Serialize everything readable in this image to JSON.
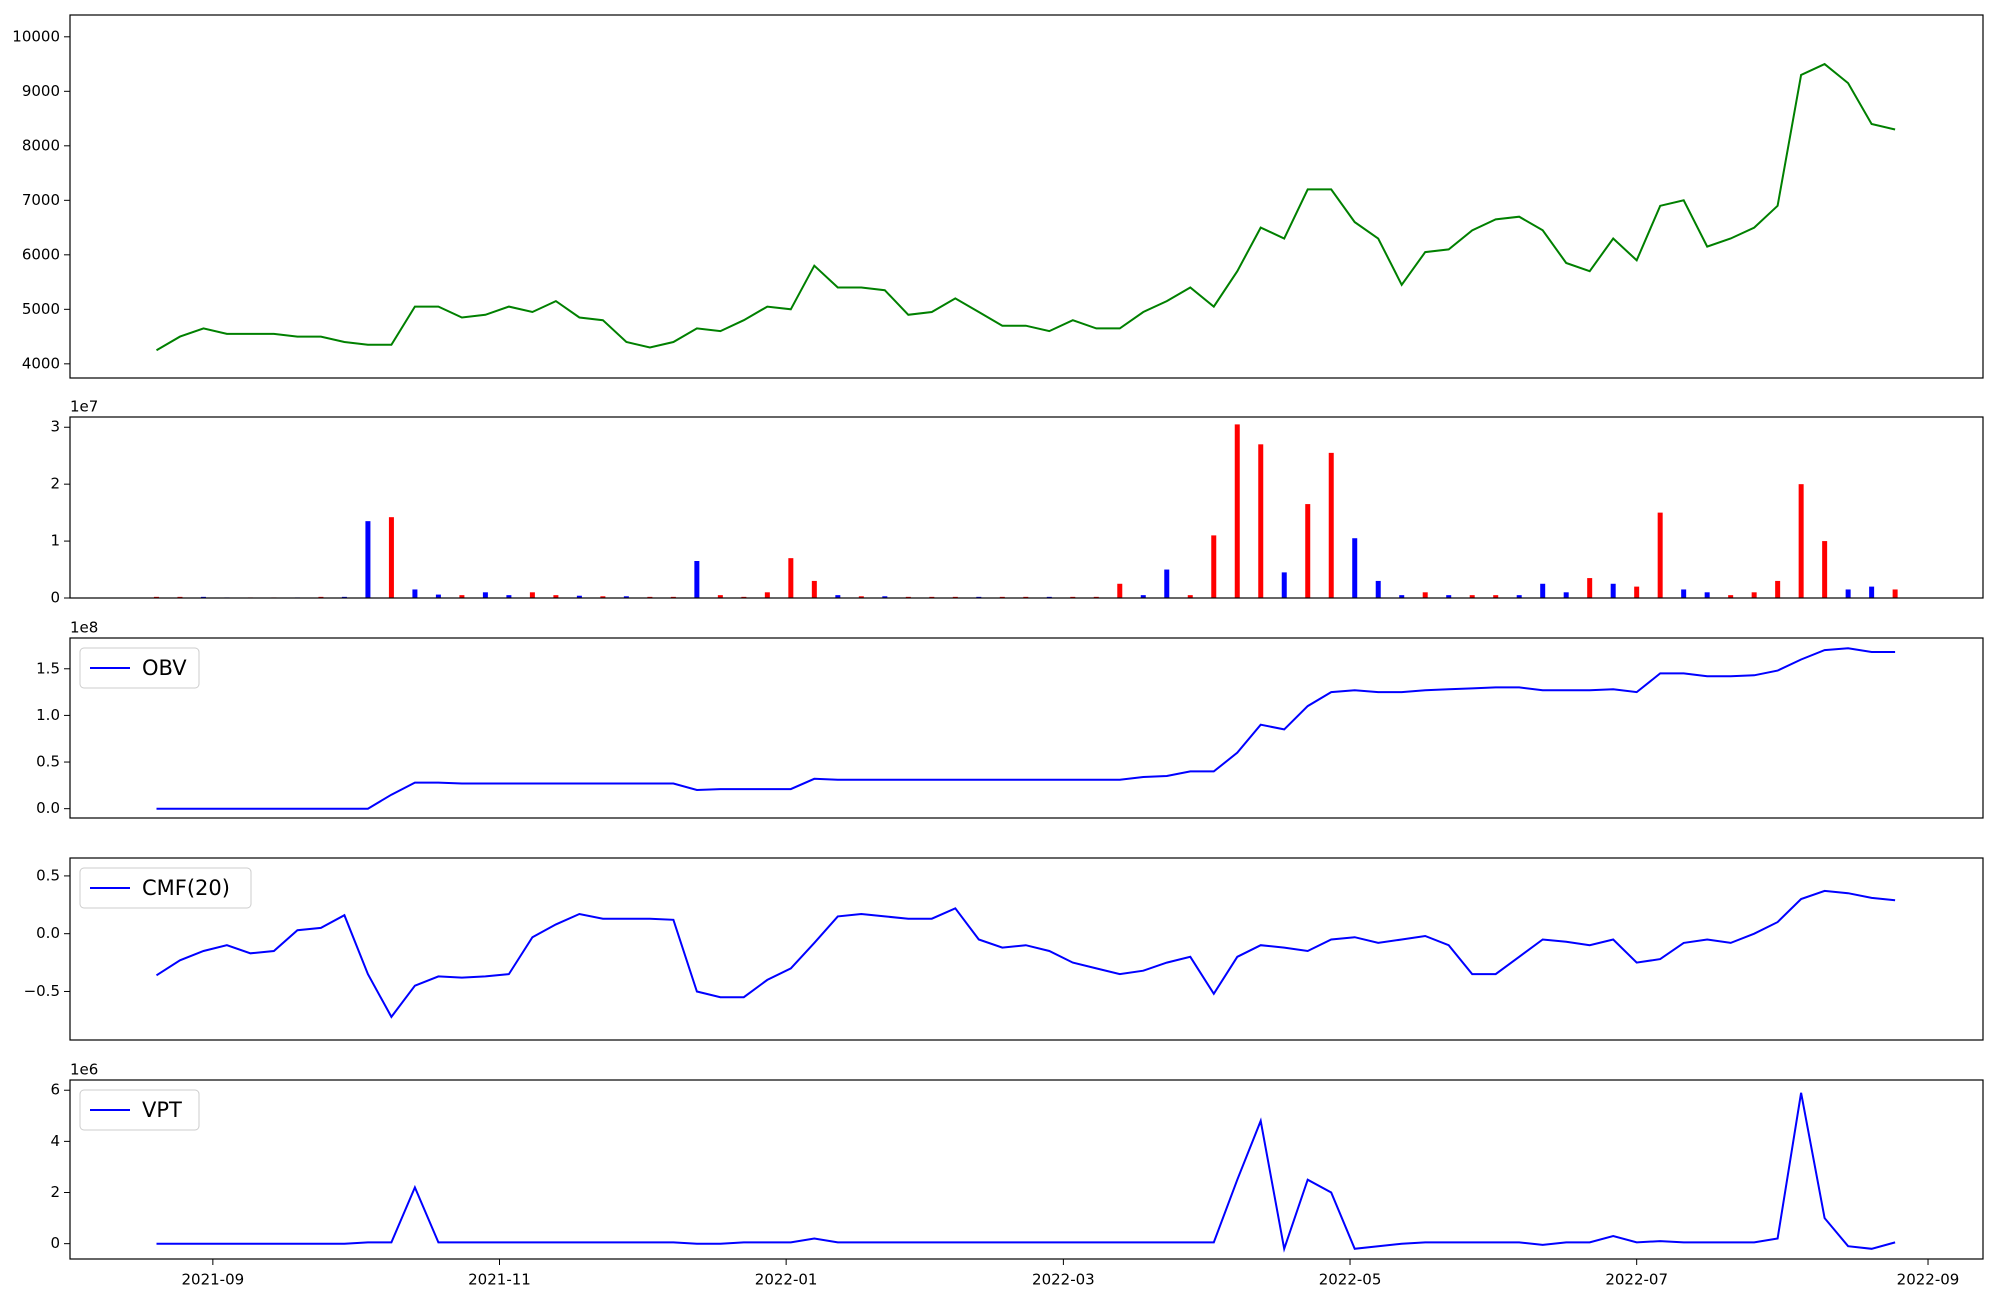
{
  "chart_data": [
    {
      "type": "line",
      "color": "green",
      "values": [
        4250,
        4500,
        4650,
        4550,
        4550,
        4550,
        4500,
        4500,
        4400,
        4350,
        4350,
        5050,
        5050,
        4850,
        4900,
        5050,
        4950,
        5150,
        4850,
        4800,
        4400,
        4300,
        4400,
        4650,
        4600,
        4800,
        5050,
        5000,
        5800,
        5400,
        5400,
        5350,
        4900,
        4950,
        5200,
        4950,
        4700,
        4700,
        4600,
        4800,
        4650,
        4650,
        4950,
        5150,
        5400,
        5050,
        5700,
        6500,
        6300,
        7200,
        7200,
        6600,
        6300,
        5450,
        6050,
        6100,
        6450,
        6650,
        6700,
        6450,
        5850,
        5700,
        6300,
        5900,
        6900,
        7000,
        6150,
        6300,
        6500,
        6900,
        9300,
        9500,
        9150,
        8400,
        8300
      ],
      "ylim": [
        3740,
        10400
      ],
      "yticks": [
        4000,
        5000,
        6000,
        7000,
        8000,
        9000,
        10000
      ]
    },
    {
      "type": "bar",
      "offset_text": "1e7",
      "values": [
        200000,
        200000,
        200000,
        100000,
        100000,
        100000,
        100000,
        200000,
        200000,
        13500000,
        14200000,
        1500000,
        600000,
        500000,
        1000000,
        500000,
        1000000,
        500000,
        400000,
        300000,
        300000,
        200000,
        200000,
        6500000,
        500000,
        200000,
        1000000,
        7000000,
        3000000,
        500000,
        300000,
        300000,
        200000,
        200000,
        200000,
        200000,
        200000,
        200000,
        200000,
        200000,
        200000,
        2500000,
        500000,
        5000000,
        500000,
        11000000,
        30500000,
        27000000,
        4500000,
        16500000,
        25500000,
        10500000,
        3000000,
        500000,
        1000000,
        500000,
        500000,
        500000,
        500000,
        2500000,
        1000000,
        3500000,
        2500000,
        2000000,
        15000000,
        1500000,
        1000000,
        500000,
        1000000,
        3000000,
        20000000,
        10000000,
        1500000,
        2000000,
        1500000
      ],
      "colors": [
        "red",
        "red",
        "blue",
        "blue",
        "red",
        "red",
        "blue",
        "red",
        "blue",
        "blue",
        "red",
        "blue",
        "blue",
        "red",
        "blue",
        "blue",
        "red",
        "red",
        "blue",
        "red",
        "blue",
        "red",
        "red",
        "blue",
        "red",
        "red",
        "red",
        "red",
        "red",
        "blue",
        "red",
        "blue",
        "red",
        "red",
        "red",
        "blue",
        "red",
        "red",
        "blue",
        "red",
        "red",
        "red",
        "blue",
        "blue",
        "red",
        "red",
        "red",
        "red",
        "blue",
        "red",
        "red",
        "blue",
        "blue",
        "blue",
        "red",
        "blue",
        "red",
        "red",
        "blue",
        "blue",
        "blue",
        "red",
        "blue",
        "red",
        "red",
        "blue",
        "blue",
        "red",
        "red",
        "red",
        "red",
        "red",
        "blue",
        "blue",
        "red"
      ],
      "ylim": [
        0,
        31800000
      ],
      "yticks": [
        0,
        {
          "value": 10000000,
          "label": "1"
        },
        {
          "value": 20000000,
          "label": "2"
        },
        {
          "value": 30000000,
          "label": "3"
        }
      ]
    },
    {
      "type": "line",
      "offset_text": "1e8",
      "legend": "upper left",
      "series": [
        {
          "name": "OBV",
          "color": "blue",
          "values": [
            0,
            0,
            0,
            0,
            0,
            0,
            0,
            0,
            0,
            0,
            15000000,
            28000000,
            28000000,
            27000000,
            27000000,
            27000000,
            27000000,
            27000000,
            27000000,
            27000000,
            27000000,
            27000000,
            27000000,
            20000000,
            21000000,
            21000000,
            21000000,
            21000000,
            32000000,
            31000000,
            31000000,
            31000000,
            31000000,
            31000000,
            31000000,
            31000000,
            31000000,
            31000000,
            31000000,
            31000000,
            31000000,
            31000000,
            34000000,
            35000000,
            40000000,
            40000000,
            60000000,
            90000000,
            85000000,
            110000000,
            125000000,
            127000000,
            125000000,
            125000000,
            127000000,
            128000000,
            129000000,
            130000000,
            130000000,
            127000000,
            127000000,
            127000000,
            128000000,
            125000000,
            145000000,
            145000000,
            142000000,
            142000000,
            143000000,
            148000000,
            160000000,
            170000000,
            172000000,
            168000000,
            168000000
          ]
        }
      ],
      "ylim": [
        -10000000,
        183000000
      ],
      "yticks": [
        {
          "value": 0,
          "label": "0.0"
        },
        {
          "value": 50000000,
          "label": "0.5"
        },
        {
          "value": 100000000,
          "label": "1.0"
        },
        {
          "value": 150000000,
          "label": "1.5"
        }
      ]
    },
    {
      "type": "line",
      "legend": "upper left",
      "series": [
        {
          "name": "CMF(20)",
          "color": "blue",
          "values": [
            -0.36,
            -0.23,
            -0.15,
            -0.1,
            -0.17,
            -0.15,
            0.03,
            0.05,
            0.16,
            -0.35,
            -0.72,
            -0.45,
            -0.37,
            -0.38,
            -0.37,
            -0.35,
            -0.03,
            0.08,
            0.17,
            0.13,
            0.13,
            0.13,
            0.12,
            -0.5,
            -0.55,
            -0.55,
            -0.4,
            -0.3,
            -0.08,
            0.15,
            0.17,
            0.15,
            0.13,
            0.13,
            0.22,
            -0.05,
            -0.12,
            -0.1,
            -0.15,
            -0.25,
            -0.3,
            -0.35,
            -0.32,
            -0.25,
            -0.2,
            -0.52,
            -0.2,
            -0.1,
            -0.12,
            -0.15,
            -0.05,
            -0.03,
            -0.08,
            -0.05,
            -0.02,
            -0.1,
            -0.35,
            -0.35,
            -0.2,
            -0.05,
            -0.07,
            -0.1,
            -0.05,
            -0.25,
            -0.22,
            -0.08,
            -0.05,
            -0.08,
            0.0,
            0.1,
            0.3,
            0.37,
            0.35,
            0.31,
            0.29
          ]
        }
      ],
      "ylim": [
        -0.92,
        0.655
      ],
      "yticks": [
        {
          "value": -0.5,
          "label": "−0.5"
        },
        {
          "value": 0,
          "label": "0.0"
        },
        0.5
      ]
    },
    {
      "type": "line",
      "offset_text": "1e6",
      "legend": "upper left",
      "series": [
        {
          "name": "VPT",
          "color": "blue",
          "values": [
            0,
            0,
            0,
            0,
            0,
            0,
            0,
            0,
            0,
            50000,
            50000,
            2200000,
            50000,
            50000,
            50000,
            50000,
            50000,
            50000,
            50000,
            50000,
            50000,
            50000,
            50000,
            0,
            0,
            50000,
            50000,
            50000,
            200000,
            50000,
            50000,
            50000,
            50000,
            50000,
            50000,
            50000,
            50000,
            50000,
            50000,
            50000,
            50000,
            50000,
            50000,
            50000,
            50000,
            50000,
            2500000,
            4800000,
            -200000,
            2500000,
            2000000,
            -200000,
            -100000,
            0,
            50000,
            50000,
            50000,
            50000,
            50000,
            -50000,
            50000,
            50000,
            300000,
            50000,
            100000,
            50000,
            50000,
            50000,
            50000,
            200000,
            5900000,
            1000000,
            -100000,
            -200000,
            50000
          ]
        }
      ],
      "ylim": [
        -600000,
        6400000
      ],
      "yticks": [
        0,
        {
          "value": 2000000,
          "label": "2"
        },
        {
          "value": 4000000,
          "label": "4"
        },
        {
          "value": 6000000,
          "label": "6"
        }
      ],
      "x": [
        18859,
        18864,
        18869,
        18874,
        18879,
        18884,
        18889,
        18894,
        18899,
        18904,
        18909,
        18914,
        18919,
        18924,
        18929,
        18934,
        18939,
        18944,
        18949,
        18954,
        18959,
        18964,
        18969,
        18974,
        18979,
        18984,
        18989,
        18994,
        18999,
        19004,
        19009,
        19014,
        19019,
        19024,
        19029,
        19034,
        19039,
        19044,
        19049,
        19054,
        19059,
        19064,
        19069,
        19074,
        19079,
        19084,
        19089,
        19094,
        19099,
        19104,
        19109,
        19114,
        19119,
        19124,
        19129,
        19134,
        19139,
        19144,
        19149,
        19154,
        19159,
        19164,
        19169,
        19174,
        19179,
        19184,
        19189,
        19194,
        19199,
        19204,
        19209,
        19214,
        19219,
        19224,
        19229
      ],
      "xlim": [
        18840.6,
        19247.7
      ],
      "xticks": [
        {
          "value": 18871,
          "label": "2021-09"
        },
        {
          "value": 18932,
          "label": "2021-11"
        },
        {
          "value": 18993,
          "label": "2022-01"
        },
        {
          "value": 19052,
          "label": "2022-03"
        },
        {
          "value": 19113,
          "label": "2022-05"
        },
        {
          "value": 19174,
          "label": "2022-07"
        },
        {
          "value": 19236,
          "label": "2022-09"
        }
      ]
    }
  ]
}
